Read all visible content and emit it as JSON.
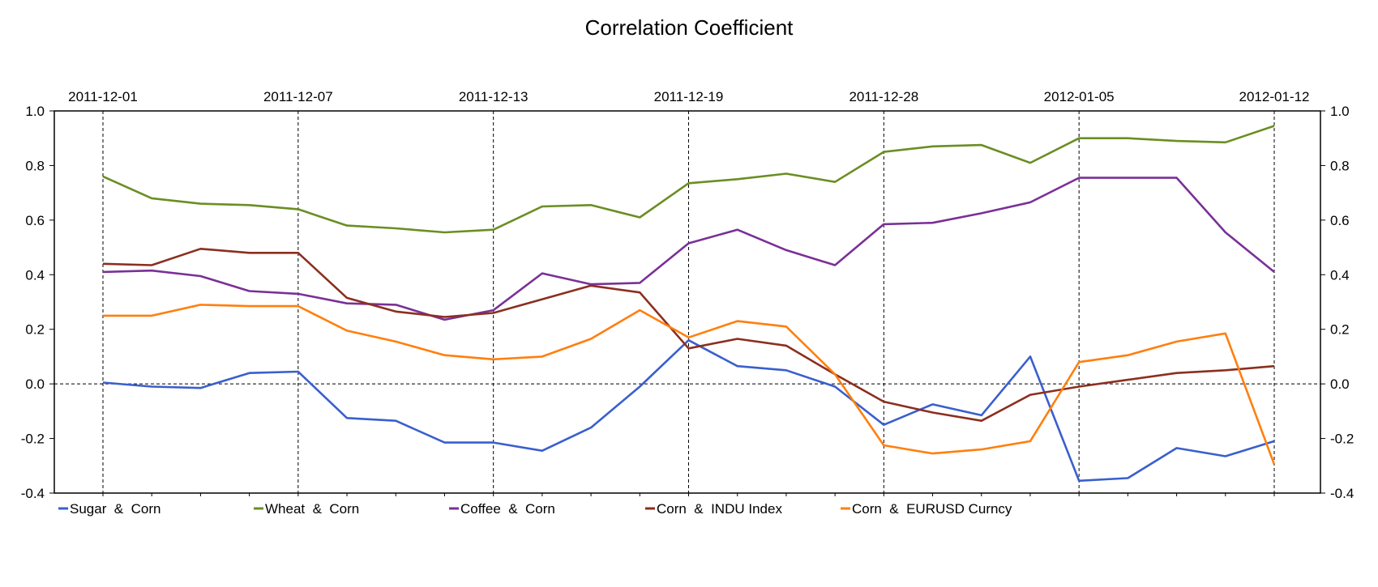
{
  "chart_data": {
    "type": "line",
    "title": "Correlation Coefficient",
    "xlabel": "",
    "ylabel": "",
    "ylim": [
      -0.4,
      1.0
    ],
    "yticks": [
      "1.0",
      "0.8",
      "0.6",
      "0.4",
      "0.2",
      "0.0",
      "-0.2",
      "-0.4"
    ],
    "ytick_values": [
      1.0,
      0.8,
      0.6,
      0.4,
      0.2,
      0.0,
      -0.2,
      -0.4
    ],
    "x_tick_labels": [
      "2011-12-01",
      "2011-12-07",
      "2011-12-13",
      "2011-12-19",
      "2011-12-28",
      "2012-01-05",
      "2012-01-12"
    ],
    "x_tick_indices": [
      0,
      4,
      8,
      12,
      16,
      20,
      24
    ],
    "point_count": 25,
    "grid": "dashed vertical lines at labeled dates, dashed horizontal line at 0.0",
    "legend_position": "bottom",
    "series": [
      {
        "name": "Sugar  &  Corn",
        "color": "#3a5fcd",
        "values": [
          0.005,
          -0.01,
          -0.015,
          0.04,
          0.045,
          -0.125,
          -0.135,
          -0.215,
          -0.215,
          -0.245,
          -0.16,
          -0.01,
          0.16,
          0.065,
          0.05,
          -0.01,
          -0.15,
          -0.075,
          -0.115,
          0.1,
          -0.355,
          -0.345,
          -0.235,
          -0.265,
          -0.21
        ]
      },
      {
        "name": "Wheat  &  Corn",
        "color": "#6b8e23",
        "values": [
          0.76,
          0.68,
          0.66,
          0.655,
          0.64,
          0.58,
          0.57,
          0.555,
          0.565,
          0.65,
          0.655,
          0.61,
          0.735,
          0.75,
          0.77,
          0.74,
          0.85,
          0.87,
          0.875,
          0.81,
          0.9,
          0.9,
          0.89,
          0.885,
          0.945
        ]
      },
      {
        "name": "Coffee  &  Corn",
        "color": "#7a3096",
        "values": [
          0.41,
          0.415,
          0.395,
          0.34,
          0.33,
          0.295,
          0.29,
          0.235,
          0.27,
          0.405,
          0.365,
          0.37,
          0.515,
          0.565,
          0.49,
          0.435,
          0.585,
          0.59,
          0.625,
          0.665,
          0.755,
          0.755,
          0.755,
          0.555,
          0.41
        ]
      },
      {
        "name": "Corn  &  INDU Index",
        "color": "#8b2f1f",
        "values": [
          0.44,
          0.435,
          0.495,
          0.48,
          0.48,
          0.315,
          0.265,
          0.245,
          0.26,
          0.31,
          0.36,
          0.335,
          0.13,
          0.165,
          0.14,
          0.035,
          -0.065,
          -0.105,
          -0.135,
          -0.04,
          -0.01,
          0.015,
          0.04,
          0.05,
          0.065
        ]
      },
      {
        "name": "Corn  &  EURUSD Curncy",
        "color": "#ff7f0e",
        "values": [
          0.25,
          0.25,
          0.29,
          0.285,
          0.285,
          0.195,
          0.155,
          0.105,
          0.09,
          0.1,
          0.165,
          0.27,
          0.17,
          0.23,
          0.21,
          0.035,
          -0.225,
          -0.255,
          -0.24,
          -0.21,
          0.08,
          0.105,
          0.155,
          0.185,
          -0.295
        ]
      }
    ]
  }
}
